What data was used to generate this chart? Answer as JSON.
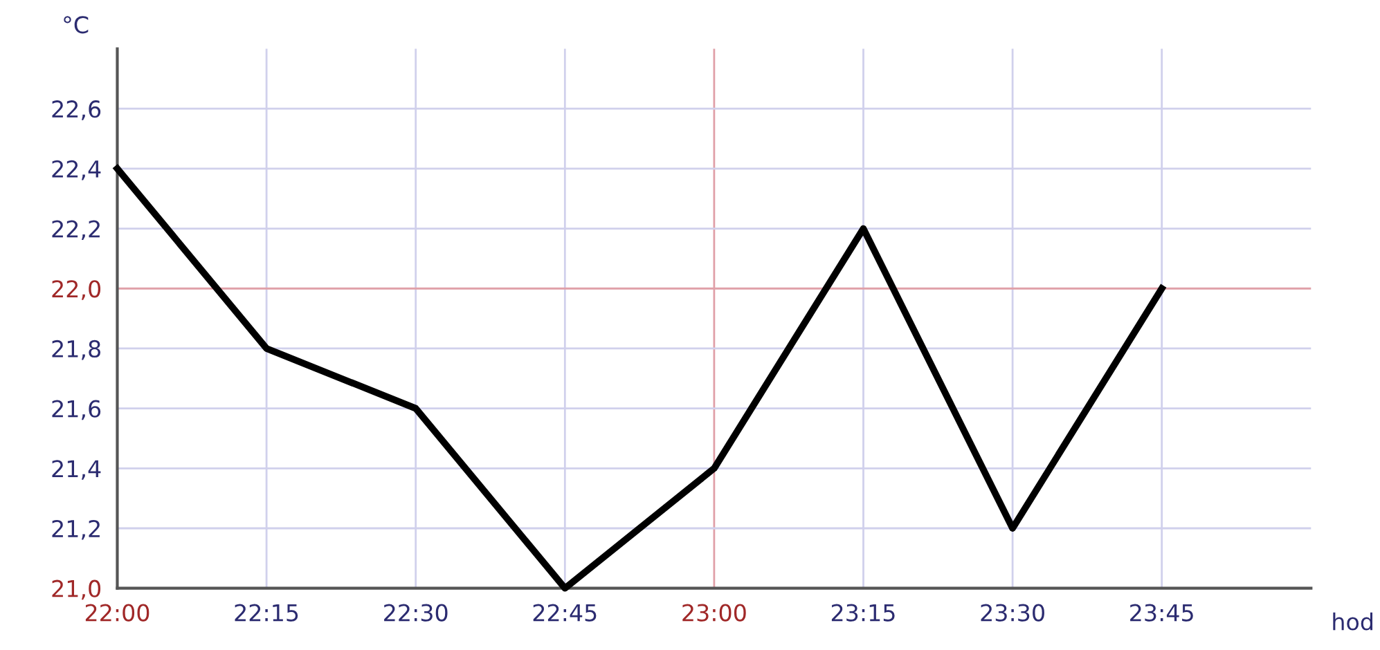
{
  "chart_data": {
    "type": "line",
    "xlabel": "hod",
    "ylabel": "°C",
    "x": [
      22.0,
      22.25,
      22.5,
      22.75,
      23.0,
      23.25,
      23.5,
      23.75
    ],
    "series": [
      {
        "color": "#000000",
        "values": [
          22.4,
          21.8,
          21.6,
          21.0,
          21.4,
          22.2,
          21.2,
          22.0
        ]
      }
    ],
    "xlim": [
      22.0,
      24.0
    ],
    "xticks": [
      {
        "value": 22.0,
        "label": "22:00"
      },
      {
        "value": 22.25,
        "label": "22:15"
      },
      {
        "value": 22.5,
        "label": "22:30"
      },
      {
        "value": 22.75,
        "label": "22:45"
      },
      {
        "value": 23.0,
        "label": "23:00"
      },
      {
        "value": 23.25,
        "label": "23:15"
      },
      {
        "value": 23.5,
        "label": "23:30"
      },
      {
        "value": 23.75,
        "label": "23:45"
      }
    ],
    "ylim": [
      21.0,
      22.8
    ],
    "yticks": [
      {
        "value": 21.0,
        "label": "21,0"
      },
      {
        "value": 21.2,
        "label": "21,2"
      },
      {
        "value": 21.4,
        "label": "21,4"
      },
      {
        "value": 21.6,
        "label": "21,6"
      },
      {
        "value": 21.8,
        "label": "21,8"
      },
      {
        "value": 22.0,
        "label": "22,0"
      },
      {
        "value": 22.2,
        "label": "22,2"
      },
      {
        "value": 22.4,
        "label": "22,4"
      },
      {
        "value": 22.6,
        "label": "22,6"
      }
    ],
    "grid": true,
    "marker": "none",
    "line_style": "solid"
  }
}
